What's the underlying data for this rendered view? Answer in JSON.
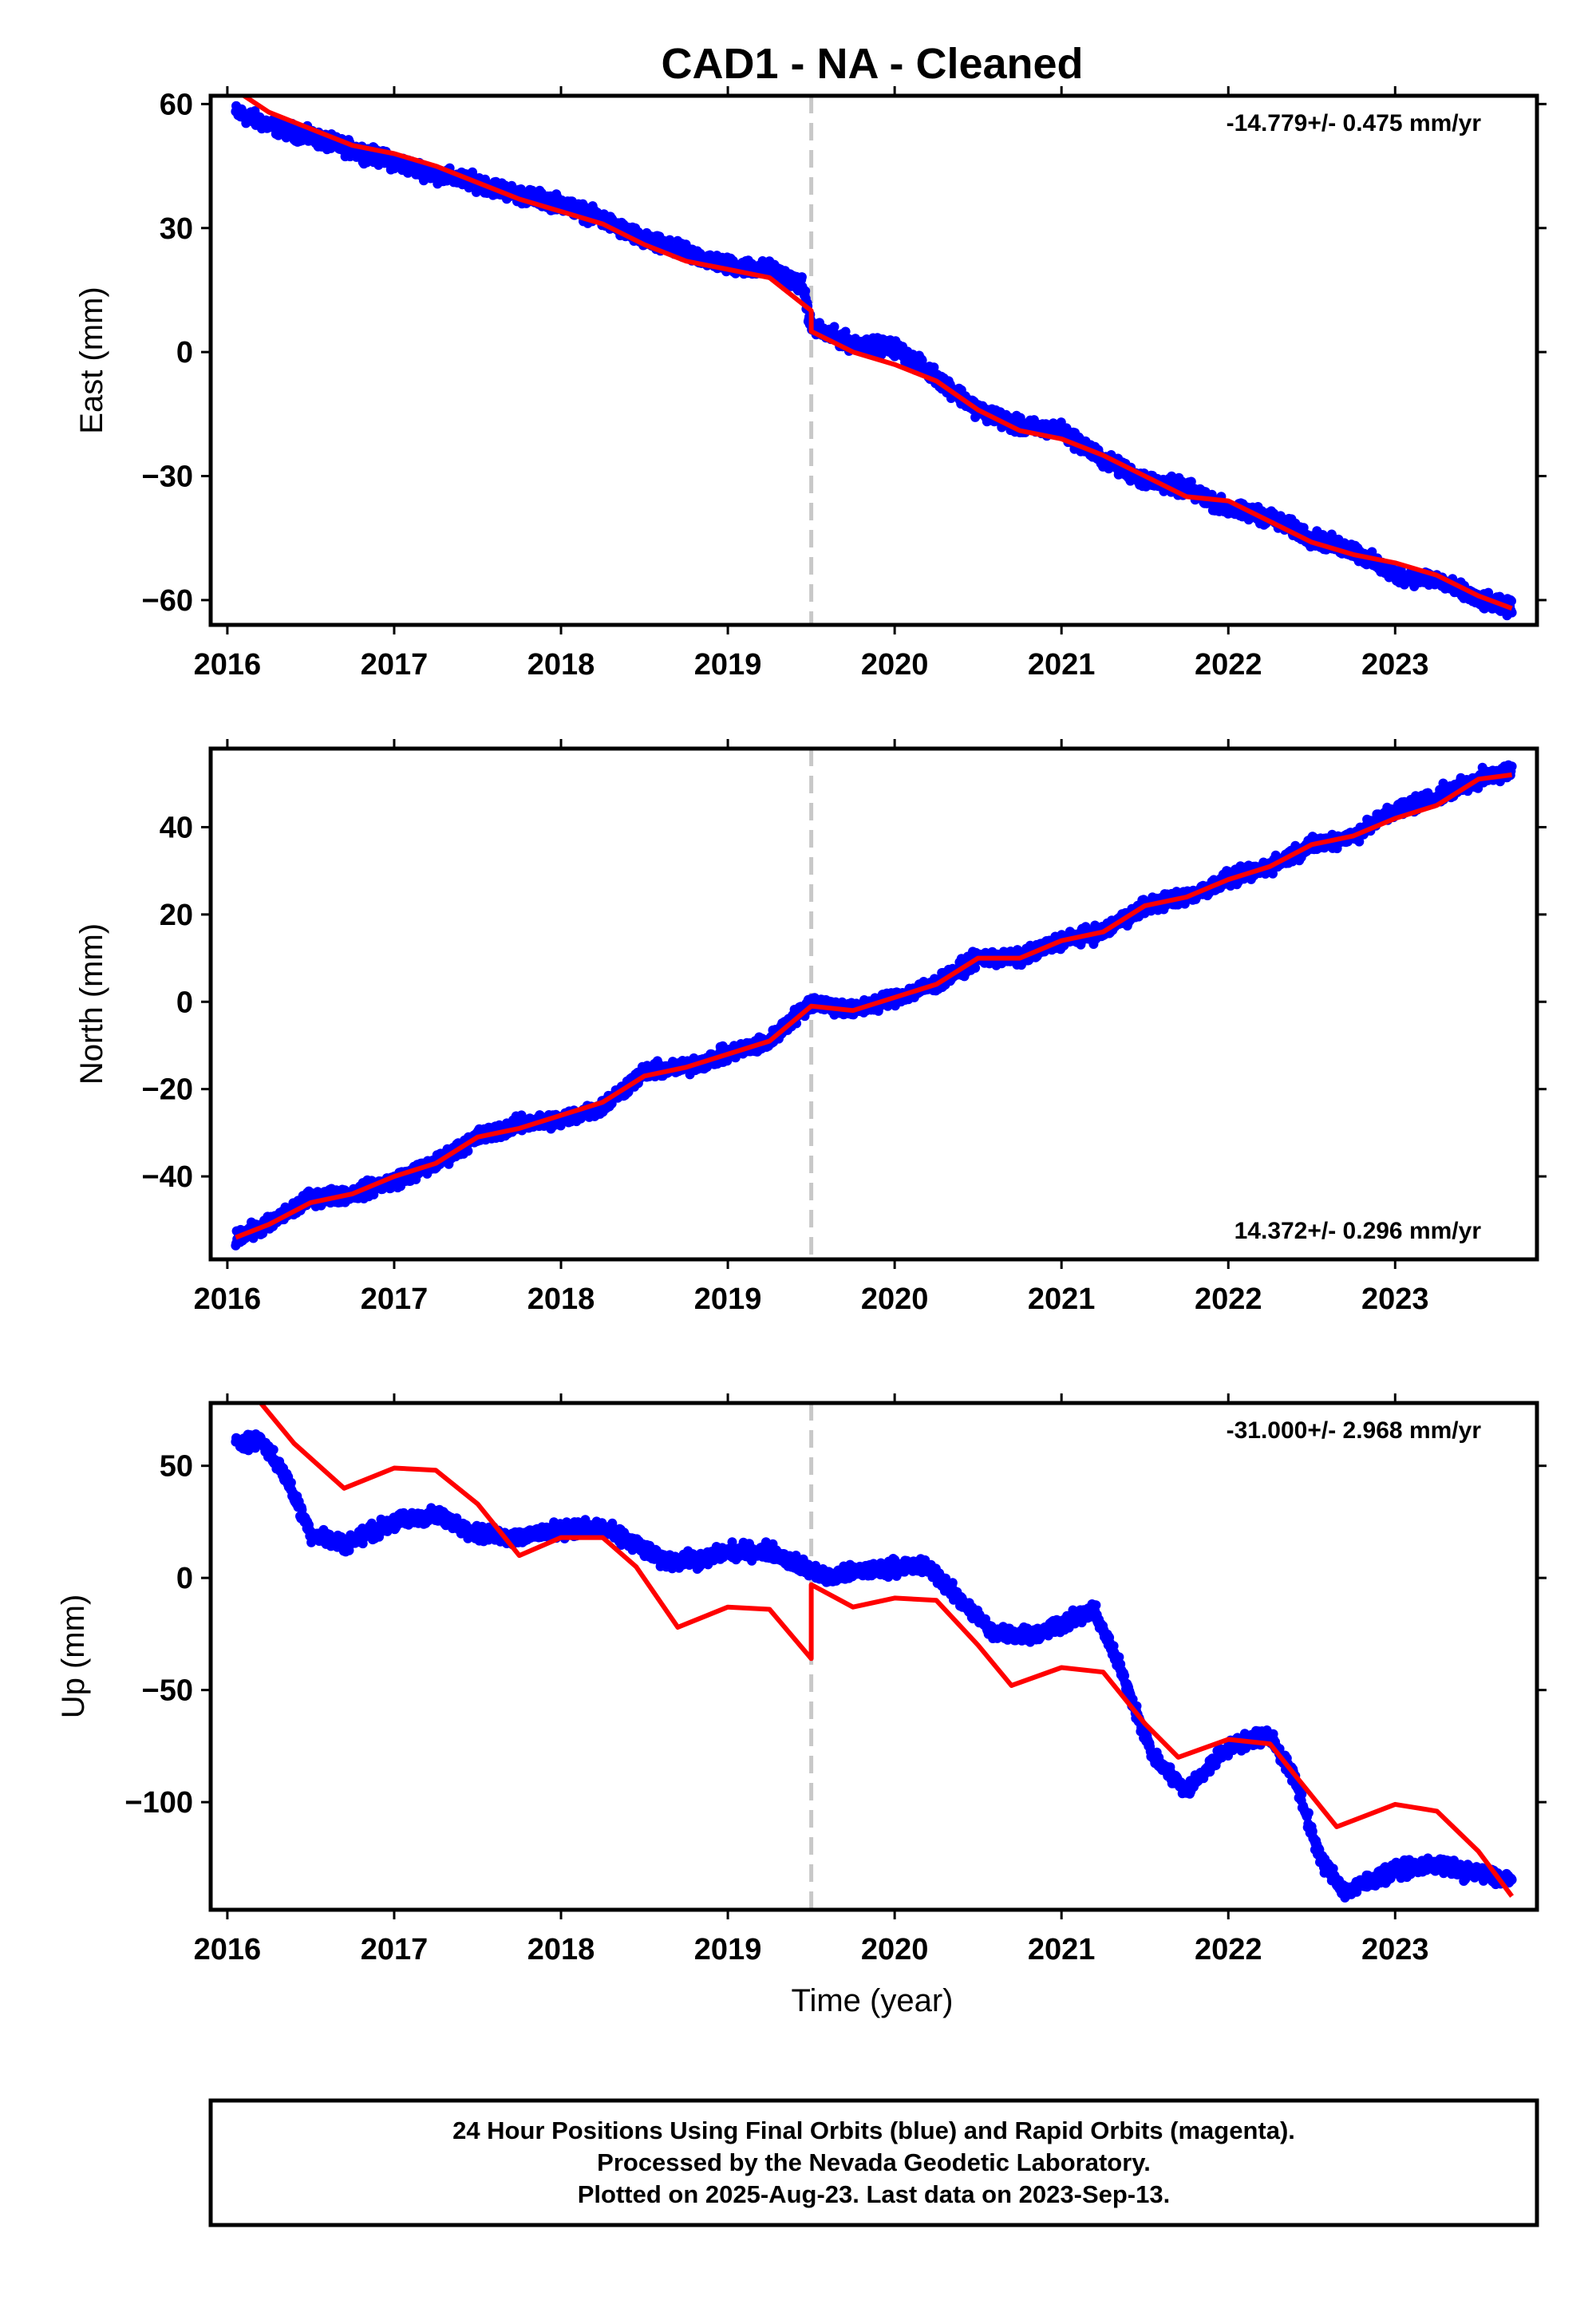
{
  "title": "CAD1  - NA - Cleaned",
  "xlabel": "Time (year)",
  "colors": {
    "data": "#0000ff",
    "model": "#ff0000",
    "break_line": "#c8c8c8",
    "frame": "#000000"
  },
  "chart_data": [
    {
      "type": "scatter",
      "name": "east",
      "ylabel": "East (mm)",
      "rate_label": "-14.779+/- 0.475 mm/yr",
      "rate_position": "top-right",
      "xlim": [
        2015.9,
        2023.85
      ],
      "ylim": [
        -66,
        62
      ],
      "yticks": [
        60,
        30,
        0,
        -30,
        -60
      ],
      "ytick_labels": [
        "60",
        "30",
        "0",
        "−30",
        "−60"
      ],
      "xticks": [
        2016,
        2017,
        2018,
        2019,
        2020,
        2021,
        2022,
        2023
      ],
      "xtick_labels": [
        "2016",
        "2017",
        "2018",
        "2019",
        "2020",
        "2021",
        "2022",
        "2023"
      ],
      "break_x": 2019.5,
      "observed": [
        [
          2016.05,
          58
        ],
        [
          2016.25,
          55
        ],
        [
          2016.5,
          52
        ],
        [
          2016.75,
          49
        ],
        [
          2017.0,
          46
        ],
        [
          2017.25,
          43
        ],
        [
          2017.5,
          41
        ],
        [
          2017.75,
          38
        ],
        [
          2018.0,
          36
        ],
        [
          2018.25,
          32
        ],
        [
          2018.5,
          27
        ],
        [
          2018.75,
          24
        ],
        [
          2019.0,
          21
        ],
        [
          2019.25,
          20
        ],
        [
          2019.45,
          16
        ],
        [
          2019.5,
          6
        ],
        [
          2019.75,
          2
        ],
        [
          2020.0,
          1
        ],
        [
          2020.25,
          -6
        ],
        [
          2020.5,
          -14
        ],
        [
          2020.75,
          -18
        ],
        [
          2021.0,
          -19
        ],
        [
          2021.25,
          -26
        ],
        [
          2021.5,
          -31
        ],
        [
          2021.75,
          -33
        ],
        [
          2022.0,
          -38
        ],
        [
          2022.25,
          -40
        ],
        [
          2022.5,
          -45
        ],
        [
          2022.75,
          -48
        ],
        [
          2023.0,
          -54
        ],
        [
          2023.25,
          -55
        ],
        [
          2023.5,
          -60
        ],
        [
          2023.7,
          -62
        ]
      ],
      "model": [
        [
          2016.1,
          62
        ],
        [
          2016.25,
          58
        ],
        [
          2016.5,
          54
        ],
        [
          2016.75,
          50
        ],
        [
          2017.0,
          48
        ],
        [
          2017.25,
          45
        ],
        [
          2017.5,
          41
        ],
        [
          2017.75,
          37
        ],
        [
          2018.0,
          34
        ],
        [
          2018.25,
          31
        ],
        [
          2018.5,
          26
        ],
        [
          2018.75,
          22
        ],
        [
          2019.0,
          20
        ],
        [
          2019.25,
          18
        ],
        [
          2019.5,
          10
        ],
        [
          2019.5,
          5
        ],
        [
          2019.75,
          0
        ],
        [
          2020.0,
          -3
        ],
        [
          2020.25,
          -7
        ],
        [
          2020.5,
          -14
        ],
        [
          2020.75,
          -19
        ],
        [
          2021.0,
          -21
        ],
        [
          2021.25,
          -25
        ],
        [
          2021.5,
          -30
        ],
        [
          2021.75,
          -35
        ],
        [
          2022.0,
          -36
        ],
        [
          2022.25,
          -41
        ],
        [
          2022.5,
          -46
        ],
        [
          2022.75,
          -49
        ],
        [
          2023.0,
          -51
        ],
        [
          2023.25,
          -54
        ],
        [
          2023.5,
          -59
        ],
        [
          2023.7,
          -62
        ]
      ]
    },
    {
      "type": "scatter",
      "name": "north",
      "ylabel": "North (mm)",
      "rate_label": "14.372+/- 0.296 mm/yr",
      "rate_position": "bottom-right",
      "xlim": [
        2015.9,
        2023.85
      ],
      "ylim": [
        -59,
        58
      ],
      "yticks": [
        40,
        20,
        0,
        -20,
        -40
      ],
      "ytick_labels": [
        "40",
        "20",
        "0",
        "−20",
        "−40"
      ],
      "xticks": [
        2016,
        2017,
        2018,
        2019,
        2020,
        2021,
        2022,
        2023
      ],
      "xtick_labels": [
        "2016",
        "2017",
        "2018",
        "2019",
        "2020",
        "2021",
        "2022",
        "2023"
      ],
      "break_x": 2019.5,
      "observed": [
        [
          2016.05,
          -54
        ],
        [
          2016.25,
          -51
        ],
        [
          2016.5,
          -45
        ],
        [
          2016.75,
          -44
        ],
        [
          2017.0,
          -41
        ],
        [
          2017.25,
          -37
        ],
        [
          2017.5,
          -31
        ],
        [
          2017.75,
          -28
        ],
        [
          2018.0,
          -27
        ],
        [
          2018.25,
          -24
        ],
        [
          2018.5,
          -16
        ],
        [
          2018.75,
          -15
        ],
        [
          2019.0,
          -12
        ],
        [
          2019.25,
          -9
        ],
        [
          2019.5,
          0
        ],
        [
          2019.75,
          -2
        ],
        [
          2020.0,
          1
        ],
        [
          2020.25,
          4
        ],
        [
          2020.5,
          10
        ],
        [
          2020.75,
          10
        ],
        [
          2021.0,
          14
        ],
        [
          2021.25,
          16
        ],
        [
          2021.5,
          22
        ],
        [
          2021.75,
          24
        ],
        [
          2022.0,
          28
        ],
        [
          2022.25,
          31
        ],
        [
          2022.5,
          36
        ],
        [
          2022.75,
          38
        ],
        [
          2023.0,
          44
        ],
        [
          2023.25,
          47
        ],
        [
          2023.5,
          51
        ],
        [
          2023.7,
          53
        ]
      ],
      "model": [
        [
          2016.05,
          -54
        ],
        [
          2016.25,
          -51
        ],
        [
          2016.5,
          -46
        ],
        [
          2016.75,
          -44
        ],
        [
          2017.0,
          -40
        ],
        [
          2017.25,
          -37
        ],
        [
          2017.5,
          -31
        ],
        [
          2017.75,
          -29
        ],
        [
          2018.0,
          -26
        ],
        [
          2018.25,
          -23
        ],
        [
          2018.5,
          -17
        ],
        [
          2018.75,
          -15
        ],
        [
          2019.0,
          -12
        ],
        [
          2019.25,
          -9
        ],
        [
          2019.5,
          -1
        ],
        [
          2019.75,
          -2
        ],
        [
          2020.0,
          1
        ],
        [
          2020.25,
          4
        ],
        [
          2020.5,
          10
        ],
        [
          2020.75,
          10
        ],
        [
          2021.0,
          14
        ],
        [
          2021.25,
          16
        ],
        [
          2021.5,
          22
        ],
        [
          2021.75,
          24
        ],
        [
          2022.0,
          28
        ],
        [
          2022.25,
          31
        ],
        [
          2022.5,
          36
        ],
        [
          2022.75,
          38
        ],
        [
          2023.0,
          42
        ],
        [
          2023.25,
          45
        ],
        [
          2023.5,
          51
        ],
        [
          2023.7,
          52
        ]
      ]
    },
    {
      "type": "scatter",
      "name": "up",
      "ylabel": "Up (mm)",
      "rate_label": "-31.000+/- 2.968 mm/yr",
      "rate_position": "top-right",
      "xlim": [
        2015.9,
        2023.85
      ],
      "ylim": [
        -148,
        78
      ],
      "yticks": [
        50,
        0,
        -50,
        -100
      ],
      "ytick_labels": [
        "50",
        "0",
        "−50",
        "−100"
      ],
      "xticks": [
        2016,
        2017,
        2018,
        2019,
        2020,
        2021,
        2022,
        2023
      ],
      "xtick_labels": [
        "2016",
        "2017",
        "2018",
        "2019",
        "2020",
        "2021",
        "2022",
        "2023"
      ],
      "break_x": 2019.5,
      "observed": [
        [
          2016.05,
          60
        ],
        [
          2016.2,
          62
        ],
        [
          2016.35,
          45
        ],
        [
          2016.5,
          20
        ],
        [
          2016.7,
          15
        ],
        [
          2017.0,
          25
        ],
        [
          2017.25,
          28
        ],
        [
          2017.5,
          20
        ],
        [
          2017.75,
          18
        ],
        [
          2018.0,
          22
        ],
        [
          2018.25,
          22
        ],
        [
          2018.45,
          15
        ],
        [
          2018.6,
          8
        ],
        [
          2018.85,
          8
        ],
        [
          2019.0,
          12
        ],
        [
          2019.25,
          12
        ],
        [
          2019.45,
          5
        ],
        [
          2019.6,
          0
        ],
        [
          2019.8,
          3
        ],
        [
          2020.0,
          5
        ],
        [
          2020.2,
          5
        ],
        [
          2020.4,
          -10
        ],
        [
          2020.6,
          -25
        ],
        [
          2020.85,
          -25
        ],
        [
          2021.0,
          -20
        ],
        [
          2021.2,
          -15
        ],
        [
          2021.35,
          -40
        ],
        [
          2021.55,
          -80
        ],
        [
          2021.75,
          -95
        ],
        [
          2022.0,
          -75
        ],
        [
          2022.25,
          -70
        ],
        [
          2022.4,
          -90
        ],
        [
          2022.55,
          -125
        ],
        [
          2022.7,
          -140
        ],
        [
          2023.0,
          -130
        ],
        [
          2023.25,
          -128
        ],
        [
          2023.5,
          -132
        ],
        [
          2023.7,
          -135
        ]
      ],
      "model": [
        [
          2016.2,
          78
        ],
        [
          2016.4,
          60
        ],
        [
          2016.7,
          40
        ],
        [
          2017.0,
          49
        ],
        [
          2017.25,
          48
        ],
        [
          2017.5,
          33
        ],
        [
          2017.75,
          10
        ],
        [
          2018.0,
          18
        ],
        [
          2018.25,
          18
        ],
        [
          2018.45,
          5
        ],
        [
          2018.7,
          -22
        ],
        [
          2019.0,
          -13
        ],
        [
          2019.25,
          -14
        ],
        [
          2019.5,
          -36
        ],
        [
          2019.5,
          -3
        ],
        [
          2019.75,
          -13
        ],
        [
          2020.0,
          -9
        ],
        [
          2020.25,
          -10
        ],
        [
          2020.5,
          -30
        ],
        [
          2020.7,
          -48
        ],
        [
          2021.0,
          -40
        ],
        [
          2021.25,
          -42
        ],
        [
          2021.5,
          -65
        ],
        [
          2021.7,
          -80
        ],
        [
          2022.0,
          -72
        ],
        [
          2022.25,
          -74
        ],
        [
          2022.4,
          -88
        ],
        [
          2022.65,
          -111
        ],
        [
          2023.0,
          -101
        ],
        [
          2023.25,
          -104
        ],
        [
          2023.5,
          -122
        ],
        [
          2023.7,
          -142
        ]
      ]
    }
  ],
  "footer": {
    "line1": "24 Hour Positions Using Final Orbits (blue) and Rapid Orbits (magenta).",
    "line2": "Processed by the Nevada Geodetic Laboratory.",
    "line3": "Plotted on 2025-Aug-23. Last data on 2023-Sep-13."
  }
}
